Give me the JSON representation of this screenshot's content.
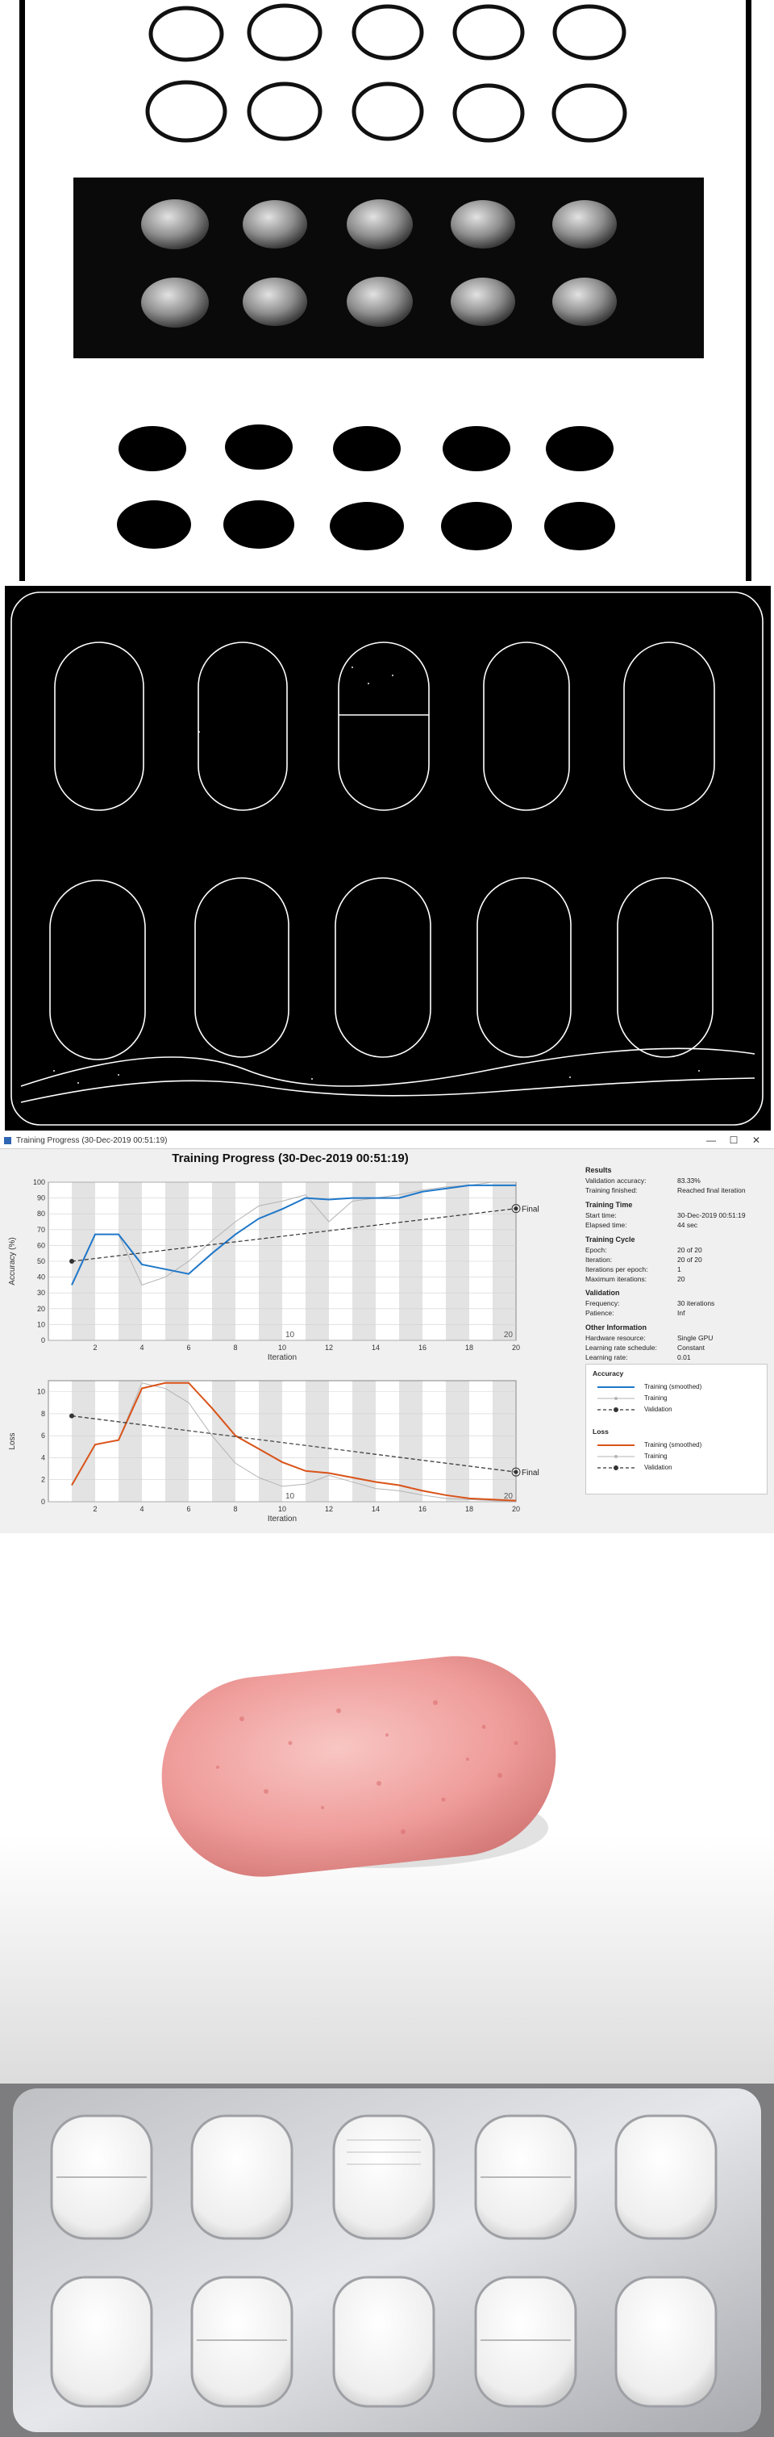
{
  "window": {
    "title": "Training Progress (30-Dec-2019 00:51:19)",
    "minimize_glyph": "—",
    "maximize_glyph": "☐",
    "close_glyph": "✕"
  },
  "chart_title": "Training Progress (30-Dec-2019 00:51:19)",
  "results": {
    "heading": "Results",
    "rows": [
      {
        "label": "Validation accuracy:",
        "value": "83.33%"
      },
      {
        "label": "Training finished:",
        "value": "Reached final iteration"
      }
    ]
  },
  "training_time": {
    "heading": "Training Time",
    "rows": [
      {
        "label": "Start time:",
        "value": "30-Dec-2019 00:51:19"
      },
      {
        "label": "Elapsed time:",
        "value": "44 sec"
      }
    ]
  },
  "training_cycle": {
    "heading": "Training Cycle",
    "rows": [
      {
        "label": "Epoch:",
        "value": "20 of 20"
      },
      {
        "label": "Iteration:",
        "value": "20 of 20"
      },
      {
        "label": "Iterations per epoch:",
        "value": "1"
      },
      {
        "label": "Maximum iterations:",
        "value": "20"
      }
    ]
  },
  "validation": {
    "heading": "Validation",
    "rows": [
      {
        "label": "Frequency:",
        "value": "30 iterations"
      },
      {
        "label": "Patience:",
        "value": "Inf"
      }
    ]
  },
  "other_info": {
    "heading": "Other Information",
    "rows": [
      {
        "label": "Hardware resource:",
        "value": "Single GPU"
      },
      {
        "label": "Learning rate schedule:",
        "value": "Constant"
      },
      {
        "label": "Learning rate:",
        "value": "0.01"
      }
    ]
  },
  "legend": {
    "accuracy_heading": "Accuracy",
    "loss_heading": "Loss",
    "training_smoothed": "Training (smoothed)",
    "training": "Training",
    "validation": "Validation"
  },
  "colors": {
    "accuracy": "#1f77c9",
    "loss": "#d95319",
    "training_raw": "#b4b4b4",
    "validation": "#333333"
  },
  "chart_data": [
    {
      "type": "line",
      "xlabel": "Iteration",
      "ylabel": "Accuracy (%)",
      "xlim": [
        0,
        20
      ],
      "ylim": [
        0,
        100
      ],
      "xticks": [
        2,
        4,
        6,
        8,
        10,
        12,
        14,
        16,
        18,
        20
      ],
      "yticks": [
        0,
        10,
        20,
        30,
        40,
        50,
        60,
        70,
        80,
        90,
        100
      ],
      "epoch_labels": [
        "10",
        "20"
      ],
      "final_label": "Final",
      "series": [
        {
          "name": "Training (smoothed)",
          "x": [
            1,
            2,
            3,
            4,
            5,
            6,
            7,
            8,
            9,
            10,
            11,
            12,
            13,
            14,
            15,
            16,
            17,
            18,
            19,
            20
          ],
          "y": [
            35,
            67,
            67,
            48,
            45,
            42,
            55,
            67,
            77,
            83,
            90,
            89,
            90,
            90,
            90,
            94,
            96,
            98,
            98,
            98
          ]
        },
        {
          "name": "Training",
          "x": [
            1,
            2,
            3,
            4,
            5,
            6,
            7,
            8,
            9,
            10,
            11,
            12,
            13,
            14,
            15,
            16,
            17,
            18,
            19,
            20
          ],
          "y": [
            35,
            67,
            67,
            35,
            40,
            50,
            63,
            75,
            85,
            88,
            92,
            75,
            88,
            90,
            92,
            95,
            97,
            98,
            100,
            100
          ]
        },
        {
          "name": "Validation",
          "x": [
            1,
            20
          ],
          "y": [
            50,
            83.33
          ]
        }
      ]
    },
    {
      "type": "line",
      "xlabel": "Iteration",
      "ylabel": "Loss",
      "xlim": [
        0,
        20
      ],
      "ylim": [
        0,
        11
      ],
      "xticks": [
        2,
        4,
        6,
        8,
        10,
        12,
        14,
        16,
        18,
        20
      ],
      "yticks": [
        0,
        2,
        4,
        6,
        8,
        10
      ],
      "epoch_labels": [
        "10",
        "20"
      ],
      "final_label": "Final",
      "series": [
        {
          "name": "Training (smoothed)",
          "x": [
            1,
            2,
            3,
            4,
            5,
            6,
            7,
            8,
            9,
            10,
            11,
            12,
            13,
            14,
            15,
            16,
            17,
            18,
            19,
            20
          ],
          "y": [
            1.5,
            5.2,
            5.6,
            10.3,
            10.8,
            10.8,
            8.5,
            6.0,
            4.8,
            3.6,
            2.8,
            2.6,
            2.2,
            1.8,
            1.5,
            1.0,
            0.6,
            0.3,
            0.2,
            0.1
          ]
        },
        {
          "name": "Training",
          "x": [
            1,
            2,
            3,
            4,
            5,
            6,
            7,
            8,
            9,
            10,
            11,
            12,
            13,
            14,
            15,
            16,
            17,
            18,
            19,
            20
          ],
          "y": [
            1.5,
            5.2,
            5.6,
            10.8,
            10.3,
            9.0,
            6.0,
            3.5,
            2.2,
            1.4,
            1.6,
            2.4,
            1.8,
            1.2,
            1.0,
            0.6,
            0.3,
            0.2,
            0.1,
            0.05
          ]
        },
        {
          "name": "Validation",
          "x": [
            1,
            20
          ],
          "y": [
            7.8,
            2.7
          ]
        }
      ]
    }
  ]
}
